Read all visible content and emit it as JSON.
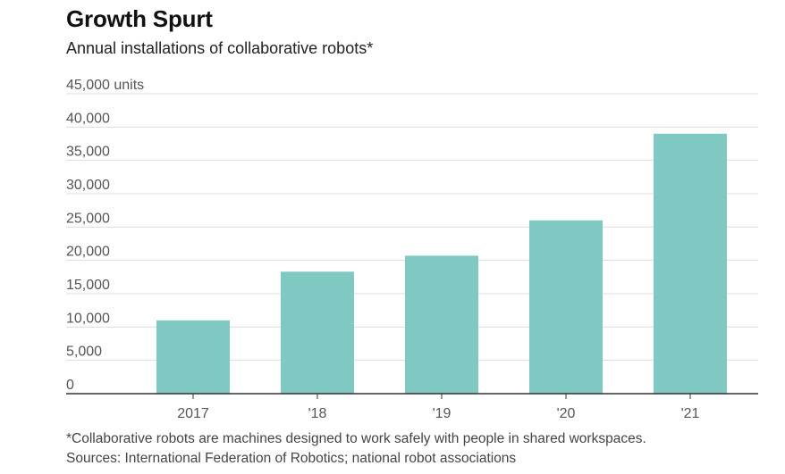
{
  "chart_data": {
    "type": "bar",
    "title": "Growth Spurt",
    "subtitle": "Annual installations of collaborative robots*",
    "categories": [
      "2017",
      "'18",
      "'19",
      "'20",
      "'21"
    ],
    "values": [
      11000,
      18300,
      20700,
      26000,
      39000
    ],
    "ylim": [
      0,
      45000
    ],
    "yticks": [
      {
        "value": 0,
        "label": "0"
      },
      {
        "value": 5000,
        "label": "5,000"
      },
      {
        "value": 10000,
        "label": "10,000"
      },
      {
        "value": 15000,
        "label": "15,000"
      },
      {
        "value": 20000,
        "label": "20,000"
      },
      {
        "value": 25000,
        "label": "25,000"
      },
      {
        "value": 30000,
        "label": "30,000"
      },
      {
        "value": 35000,
        "label": "35,000"
      },
      {
        "value": 40000,
        "label": "40,000"
      },
      {
        "value": 45000,
        "label": "45,000 units"
      }
    ],
    "grid": true,
    "bar_color": "#7fc9c2",
    "grid_color": "#dddddd",
    "axis_color": "#333333",
    "footnote": "*Collaborative robots are machines designed to work safely with people in shared workspaces.",
    "source": "Sources: International Federation of Robotics; national robot associations"
  }
}
